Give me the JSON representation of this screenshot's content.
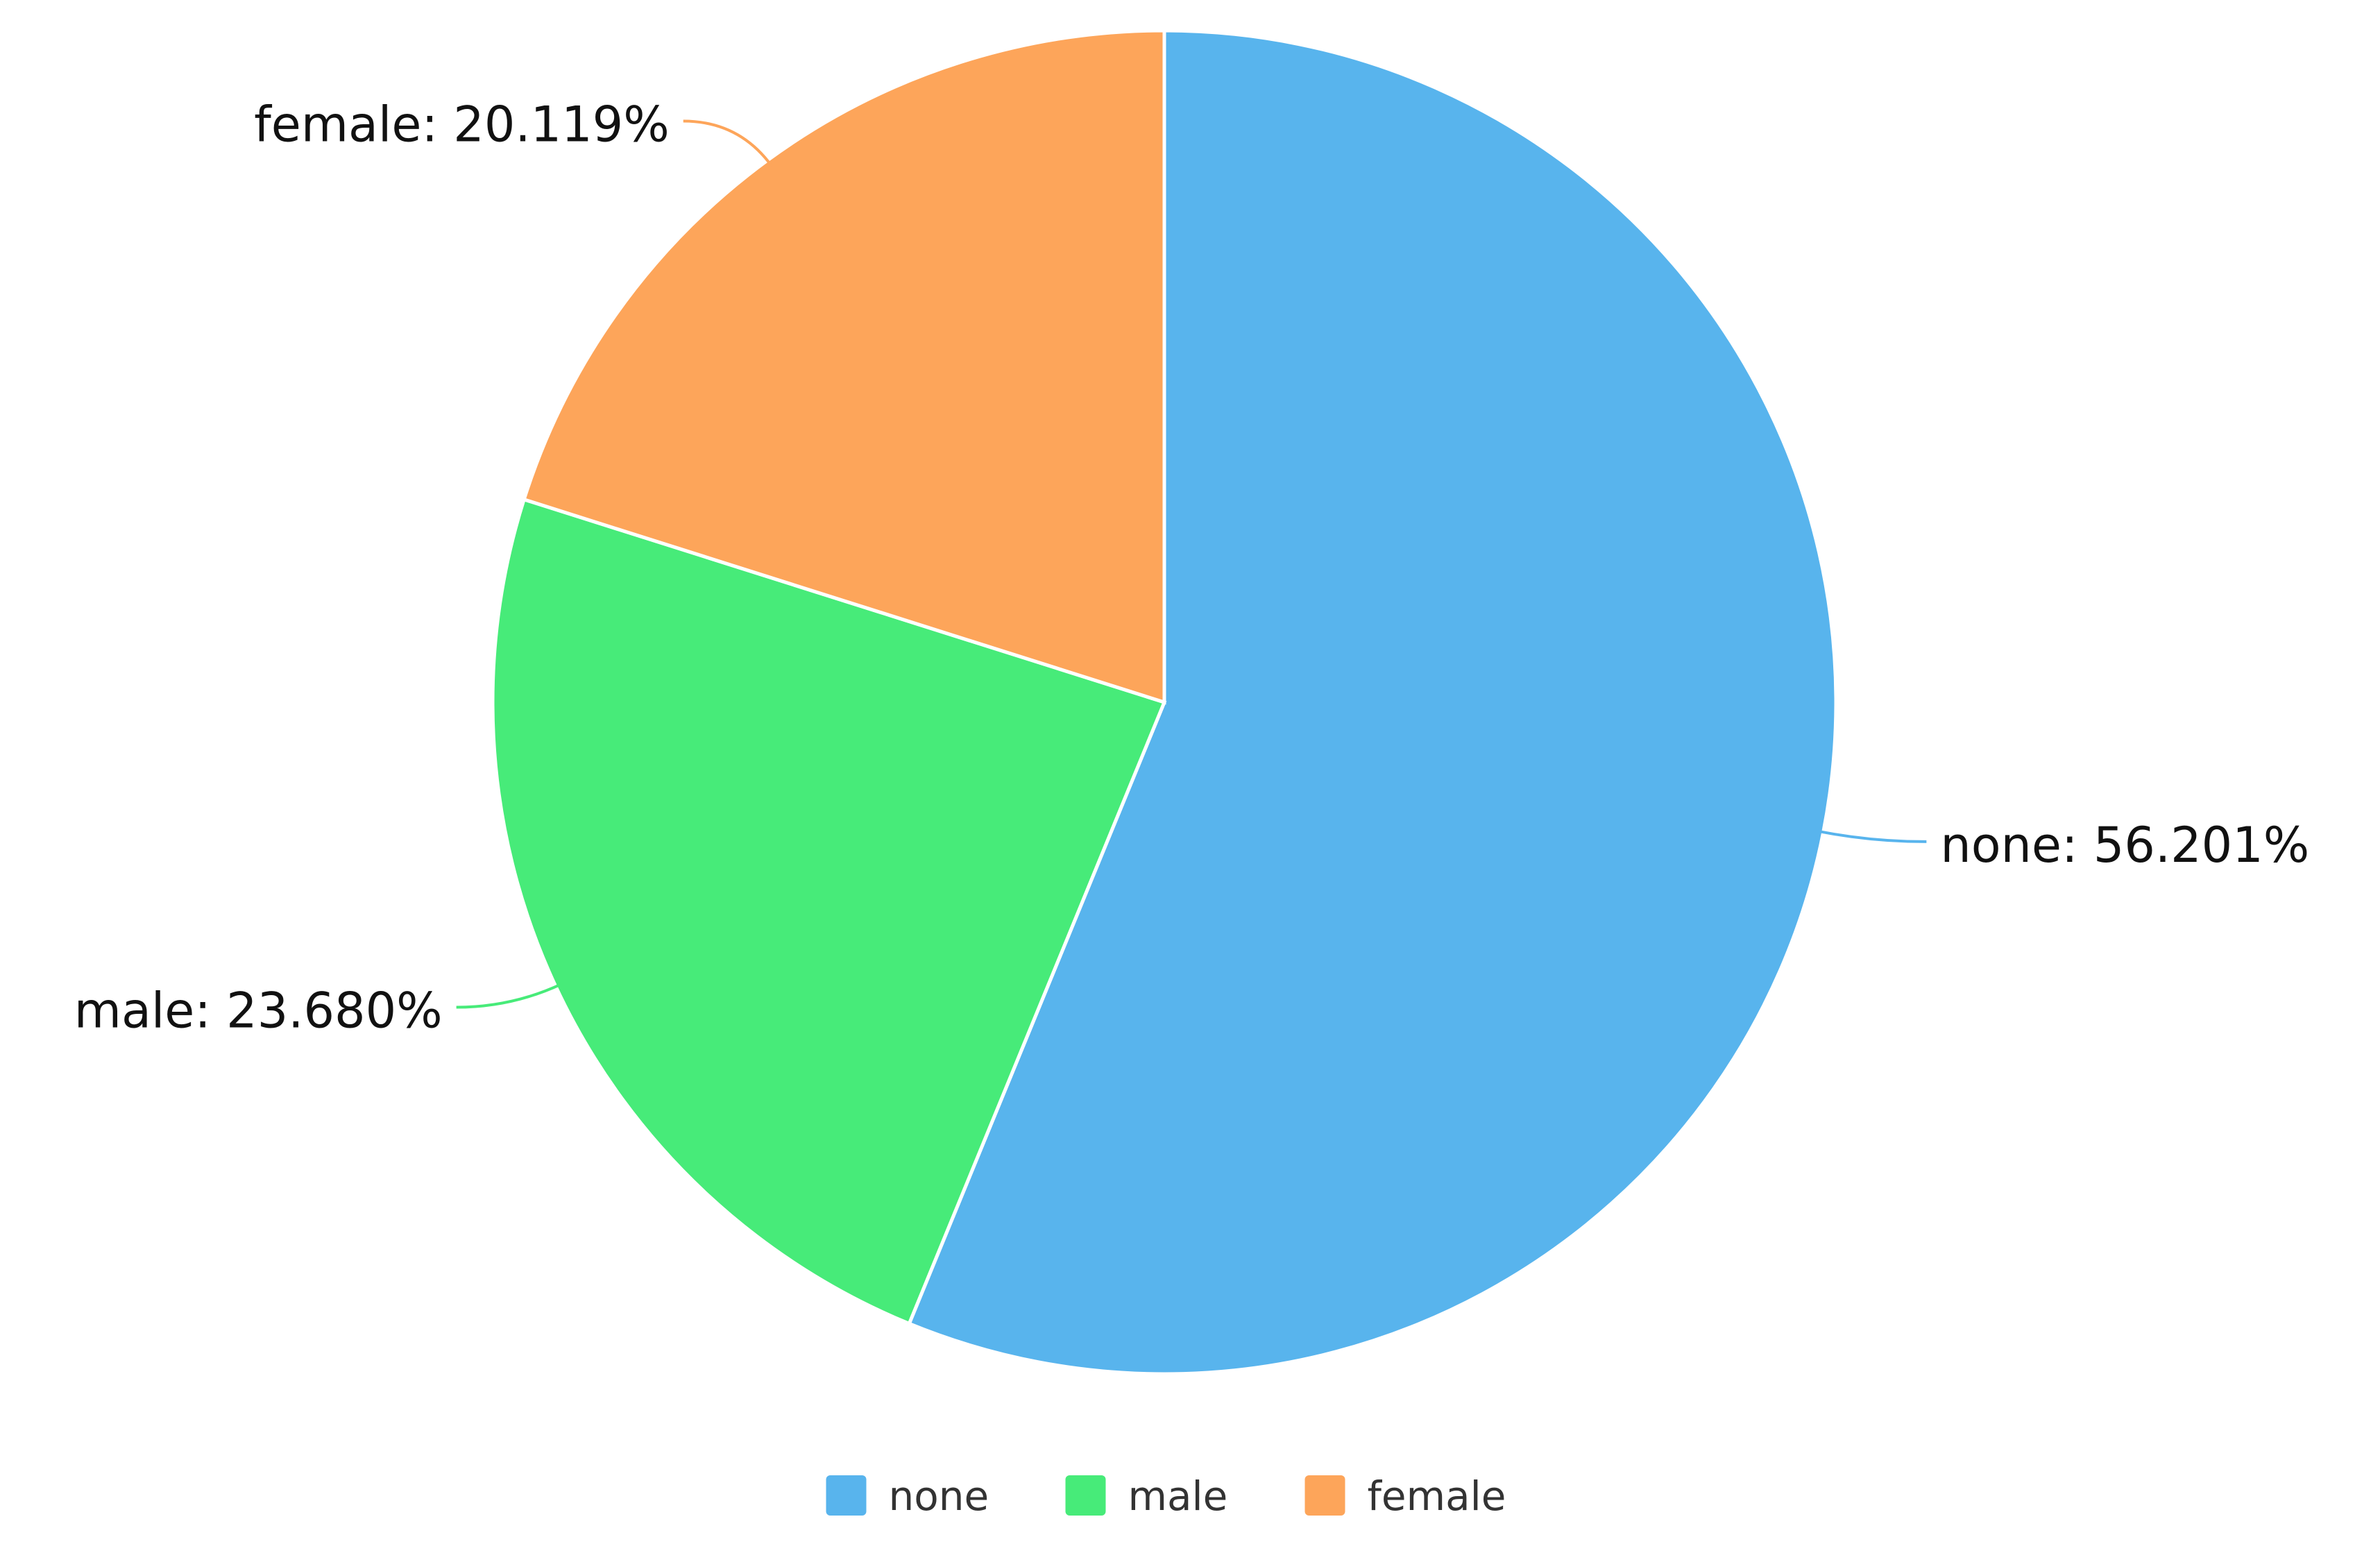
{
  "chart_data": {
    "type": "pie",
    "categories": [
      "none",
      "male",
      "female"
    ],
    "values": [
      56.201,
      23.68,
      20.119
    ],
    "value_labels": [
      "none: 56.201%",
      "male: 23.680%",
      "female: 20.119%"
    ],
    "colors": [
      "#58b4ed",
      "#47eb79",
      "#fda55a"
    ],
    "legend": "bottom"
  }
}
